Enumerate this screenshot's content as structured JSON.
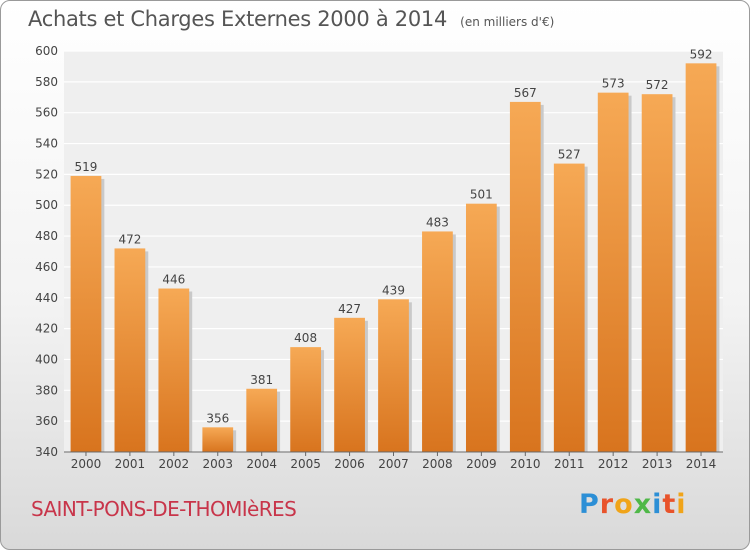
{
  "header": {
    "title": "Achats et Charges Externes 2000 à 2014",
    "subtitle": "(en milliers d'€)"
  },
  "footer": {
    "place_name": "SAINT-PONS-DE-THOMIèRES",
    "logo_letters": [
      "P",
      "r",
      "o",
      "x",
      "i",
      "t",
      "i"
    ],
    "logo_colors": [
      "#2c8fd6",
      "#e8532b",
      "#f0a419",
      "#4fb848",
      "#2c8fd6",
      "#e8532b",
      "#f0a419"
    ]
  },
  "chart_data": {
    "type": "bar",
    "title": "Achats et Charges Externes 2000 à 2014",
    "subtitle": "(en milliers d'€)",
    "categories": [
      "2000",
      "2001",
      "2002",
      "2003",
      "2004",
      "2005",
      "2006",
      "2007",
      "2008",
      "2009",
      "2010",
      "2011",
      "2012",
      "2013",
      "2014"
    ],
    "values": [
      519,
      472,
      446,
      356,
      381,
      408,
      427,
      439,
      483,
      501,
      567,
      527,
      573,
      572,
      592
    ],
    "ylim": [
      340,
      600
    ],
    "yticks": [
      340,
      360,
      380,
      400,
      420,
      440,
      460,
      480,
      500,
      520,
      540,
      560,
      580,
      600
    ],
    "grid": true,
    "bar_color_top": "#f6a955",
    "bar_color_bottom": "#d8741e"
  }
}
